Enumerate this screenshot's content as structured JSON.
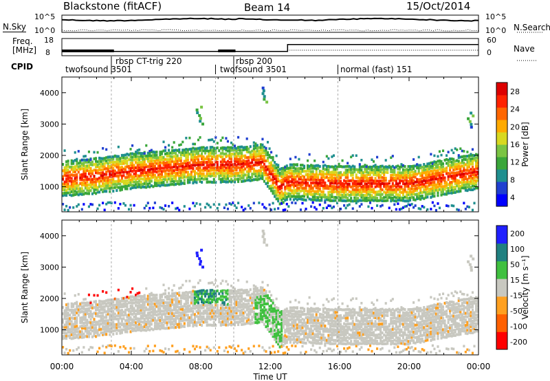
{
  "header": {
    "title": "Blackstone (fitACF)",
    "beam": "Beam 14",
    "date": "15/Oct/2014"
  },
  "noise_panel": {
    "left_label": "N.Sky",
    "right_label": "N.Search",
    "left_ticks": [
      "10^5",
      "10^0"
    ],
    "right_ticks": [
      "10^5",
      "10^0"
    ]
  },
  "freq_panel": {
    "left_label_line1": "Freq.",
    "left_label_line2": "[MHz]",
    "right_label": "Nave",
    "left_ticks": [
      "18",
      "8"
    ],
    "right_ticks": [
      "60",
      "0"
    ]
  },
  "cpid": {
    "label": "CPID",
    "segments": [
      {
        "name": "twofsound 3501",
        "start": 0.0,
        "row": 1
      },
      {
        "name": "rbsp CT-trig 220",
        "start": 2.85,
        "row": 0
      },
      {
        "name": "twofsound 3501",
        "start": 8.85,
        "row": 1
      },
      {
        "name": "rbsp 200",
        "start": 9.9,
        "row": 0
      },
      {
        "name": "normal (fast) 151",
        "start": 15.9,
        "row": 1
      }
    ]
  },
  "power_panel": {
    "ylabel": "Slant Range [km]",
    "yticks": [
      "4000",
      "3000",
      "2000",
      "1000"
    ],
    "colorbar_label": "Power [dB]",
    "colorbar_ticks": [
      "28",
      "24",
      "20",
      "16",
      "12",
      "8",
      "4"
    ],
    "colors": [
      "#0000ff",
      "#2040d0",
      "#1f8f8f",
      "#3aa63a",
      "#7ac443",
      "#d8d820",
      "#ffaa00",
      "#ff6600",
      "#ff2200",
      "#dd0000"
    ]
  },
  "velocity_panel": {
    "ylabel": "Slant Range [km]",
    "yticks": [
      "4000",
      "3000",
      "2000",
      "1000"
    ],
    "colorbar_label": "Velocity [m s⁻¹]",
    "colorbar_ticks": [
      "200",
      "100",
      "50",
      "15",
      "-15",
      "-50",
      "-100",
      "-200"
    ],
    "colors": [
      "#2020ff",
      "#208080",
      "#40c040",
      "#c8c8c0",
      "#ffa020",
      "#ff6000",
      "#ff0000"
    ]
  },
  "xaxis": {
    "label": "Time UT",
    "ticks": [
      "00:00",
      "04:00",
      "08:00",
      "12:00",
      "16:00",
      "20:00",
      "00:00"
    ]
  },
  "chart_data": {
    "type": "heatmap",
    "title": "Blackstone (fitACF)",
    "xlabel": "Time UT",
    "ylabel": "Slant Range [km]",
    "xlim": [
      0,
      24
    ],
    "ylim": [
      200,
      4500
    ],
    "power_range_db": [
      0,
      30
    ],
    "velocity_range": [
      -250,
      250
    ],
    "frequency_mhz": [
      {
        "t": 0,
        "v": 10.5
      },
      {
        "t": 13.0,
        "v": 10.5
      },
      {
        "t": 13.0,
        "v": 14.5
      },
      {
        "t": 24,
        "v": 14.5
      }
    ],
    "main_band_center_km": [
      {
        "t": 0,
        "v": 1250
      },
      {
        "t": 2,
        "v": 1350
      },
      {
        "t": 4,
        "v": 1500
      },
      {
        "t": 6,
        "v": 1600
      },
      {
        "t": 8,
        "v": 1700
      },
      {
        "t": 10,
        "v": 1700
      },
      {
        "t": 11.5,
        "v": 1800
      },
      {
        "t": 12.5,
        "v": 1000
      },
      {
        "t": 13,
        "v": 1150
      },
      {
        "t": 16,
        "v": 1100
      },
      {
        "t": 20,
        "v": 1100
      },
      {
        "t": 24,
        "v": 1500
      }
    ]
  }
}
